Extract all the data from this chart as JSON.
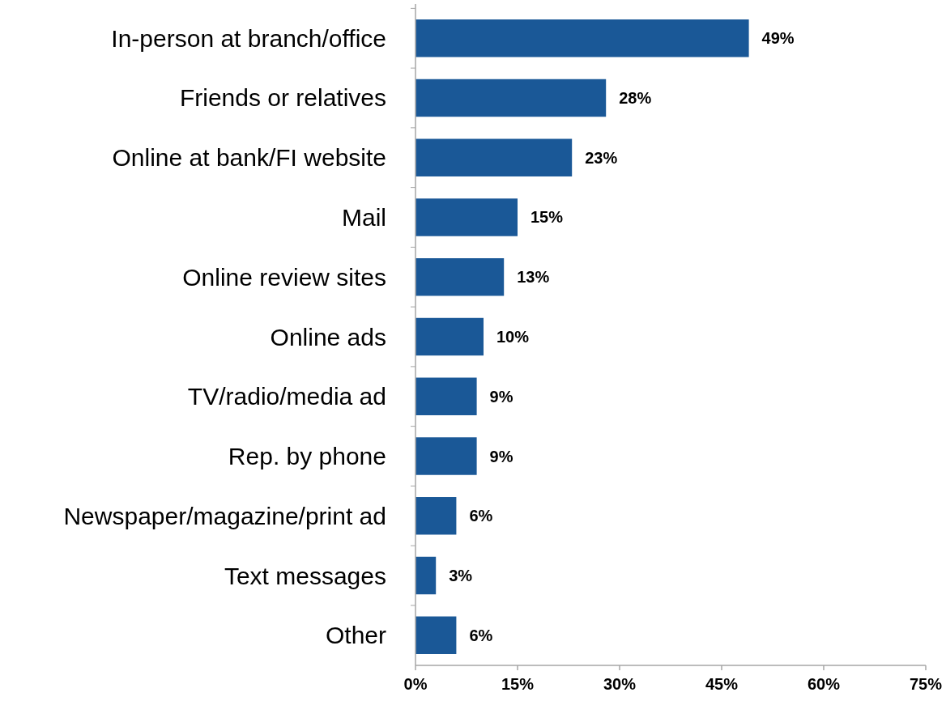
{
  "chart_data": {
    "type": "bar",
    "orientation": "horizontal",
    "categories": [
      "In-person at branch/office",
      "Friends or relatives",
      "Online at bank/FI website",
      "Mail",
      "Online review sites",
      "Online ads",
      "TV/radio/media ad",
      "Rep. by phone",
      "Newspaper/magazine/print ad",
      "Text messages",
      "Other"
    ],
    "values": [
      49,
      28,
      23,
      15,
      13,
      10,
      9,
      9,
      6,
      3,
      6
    ],
    "value_labels": [
      "49%",
      "28%",
      "23%",
      "15%",
      "13%",
      "10%",
      "9%",
      "9%",
      "6%",
      "3%",
      "6%"
    ],
    "color": "#1a5897",
    "xlim": [
      0,
      75
    ],
    "xticks": [
      {
        "value": 0,
        "label": "0%"
      },
      {
        "value": 15,
        "label": "15%"
      },
      {
        "value": 30,
        "label": "30%"
      },
      {
        "value": 45,
        "label": "45%"
      },
      {
        "value": 60,
        "label": "60%"
      },
      {
        "value": 75,
        "label": "75%"
      }
    ],
    "grid": false
  }
}
